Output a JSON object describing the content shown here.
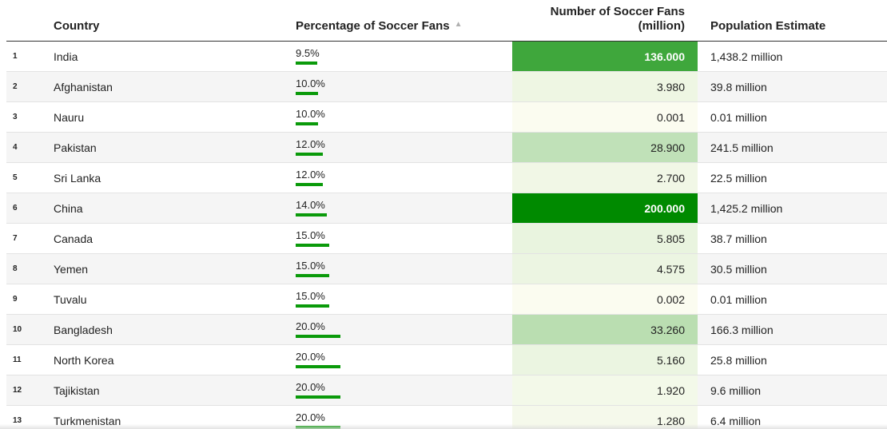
{
  "columns": {
    "country": "Country",
    "percentage": "Percentage of Soccer Fans",
    "fans_line1": "Number of Soccer Fans",
    "fans_line2": "(million)",
    "population": "Population Estimate"
  },
  "sort_icon": "sort-ascending-icon",
  "colors": {
    "bar": "#0a9a0a",
    "fans_scale_low": "#fbfcf0",
    "fans_scale_high": "#008a00",
    "row_alt": "#f5f5f5"
  },
  "rows": [
    {
      "rank": "1",
      "country": "India",
      "pct": "9.5%",
      "pct_value": 9.5,
      "fans": "136.000",
      "fans_value": 136.0,
      "population": "1,438.2 million"
    },
    {
      "rank": "2",
      "country": "Afghanistan",
      "pct": "10.0%",
      "pct_value": 10.0,
      "fans": "3.980",
      "fans_value": 3.98,
      "population": "39.8 million"
    },
    {
      "rank": "3",
      "country": "Nauru",
      "pct": "10.0%",
      "pct_value": 10.0,
      "fans": "0.001",
      "fans_value": 0.001,
      "population": "0.01 million"
    },
    {
      "rank": "4",
      "country": "Pakistan",
      "pct": "12.0%",
      "pct_value": 12.0,
      "fans": "28.900",
      "fans_value": 28.9,
      "population": "241.5 million"
    },
    {
      "rank": "5",
      "country": "Sri Lanka",
      "pct": "12.0%",
      "pct_value": 12.0,
      "fans": "2.700",
      "fans_value": 2.7,
      "population": "22.5 million"
    },
    {
      "rank": "6",
      "country": "China",
      "pct": "14.0%",
      "pct_value": 14.0,
      "fans": "200.000",
      "fans_value": 200.0,
      "population": "1,425.2 million"
    },
    {
      "rank": "7",
      "country": "Canada",
      "pct": "15.0%",
      "pct_value": 15.0,
      "fans": "5.805",
      "fans_value": 5.805,
      "population": "38.7 million"
    },
    {
      "rank": "8",
      "country": "Yemen",
      "pct": "15.0%",
      "pct_value": 15.0,
      "fans": "4.575",
      "fans_value": 4.575,
      "population": "30.5 million"
    },
    {
      "rank": "9",
      "country": "Tuvalu",
      "pct": "15.0%",
      "pct_value": 15.0,
      "fans": "0.002",
      "fans_value": 0.002,
      "population": "0.01 million"
    },
    {
      "rank": "10",
      "country": "Bangladesh",
      "pct": "20.0%",
      "pct_value": 20.0,
      "fans": "33.260",
      "fans_value": 33.26,
      "population": "166.3 million"
    },
    {
      "rank": "11",
      "country": "North Korea",
      "pct": "20.0%",
      "pct_value": 20.0,
      "fans": "5.160",
      "fans_value": 5.16,
      "population": "25.8 million"
    },
    {
      "rank": "12",
      "country": "Tajikistan",
      "pct": "20.0%",
      "pct_value": 20.0,
      "fans": "1.920",
      "fans_value": 1.92,
      "population": "9.6 million"
    },
    {
      "rank": "13",
      "country": "Turkmenistan",
      "pct": "20.0%",
      "pct_value": 20.0,
      "fans": "1.280",
      "fans_value": 1.28,
      "population": "6.4 million"
    }
  ]
}
